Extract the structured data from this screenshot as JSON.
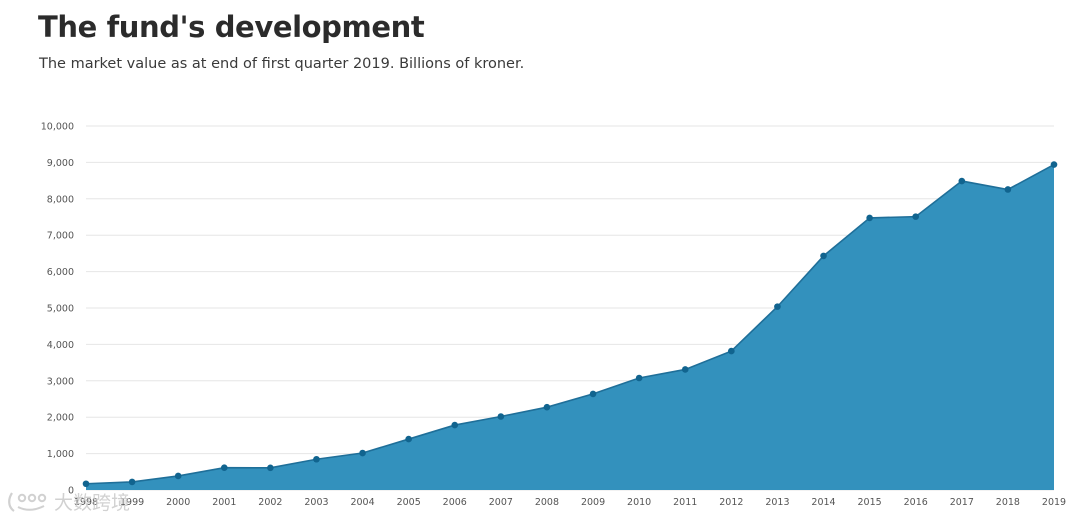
{
  "title": "The fund's development",
  "subtitle": "The market value as at end of first quarter 2019. Billions of kroner.",
  "watermark": "大数跨境",
  "colors": {
    "area": "#3391bd",
    "line": "#1f6f99",
    "marker": "#11648f",
    "grid": "#e6e6e6",
    "tick": "#555555"
  },
  "chart_data": {
    "type": "area",
    "title": "The fund's development",
    "xlabel": "",
    "ylabel": "",
    "ylim": [
      0,
      10000
    ],
    "yticks": [
      0,
      1000,
      2000,
      3000,
      4000,
      5000,
      6000,
      7000,
      8000,
      9000,
      10000
    ],
    "ytick_labels": [
      "0",
      "1,000",
      "2,000",
      "3,000",
      "4,000",
      "5,000",
      "6,000",
      "7,000",
      "8,000",
      "9,000",
      "10,000"
    ],
    "x_tick_labels": [
      "1998",
      "1999",
      "2000",
      "2001",
      "2002",
      "2003",
      "2004",
      "2005",
      "2006",
      "2007",
      "2008",
      "2009",
      "2010",
      "2011",
      "2012",
      "2013",
      "2014",
      "2015",
      "2016",
      "2017",
      "2018",
      "2019"
    ],
    "grid": true,
    "series": [
      {
        "name": "Market value",
        "x": [
          1998,
          1999,
          2000,
          2001,
          2002,
          2003,
          2004,
          2005,
          2006,
          2007,
          2008,
          2009,
          2010,
          2011,
          2012,
          2013,
          2014,
          2015,
          2016,
          2017,
          2018,
          2019
        ],
        "values": [
          172,
          222,
          386,
          614,
          609,
          845,
          1016,
          1399,
          1784,
          2019,
          2275,
          2640,
          3077,
          3312,
          3816,
          5038,
          6431,
          7475,
          7510,
          8488,
          8256,
          8940
        ]
      }
    ]
  }
}
